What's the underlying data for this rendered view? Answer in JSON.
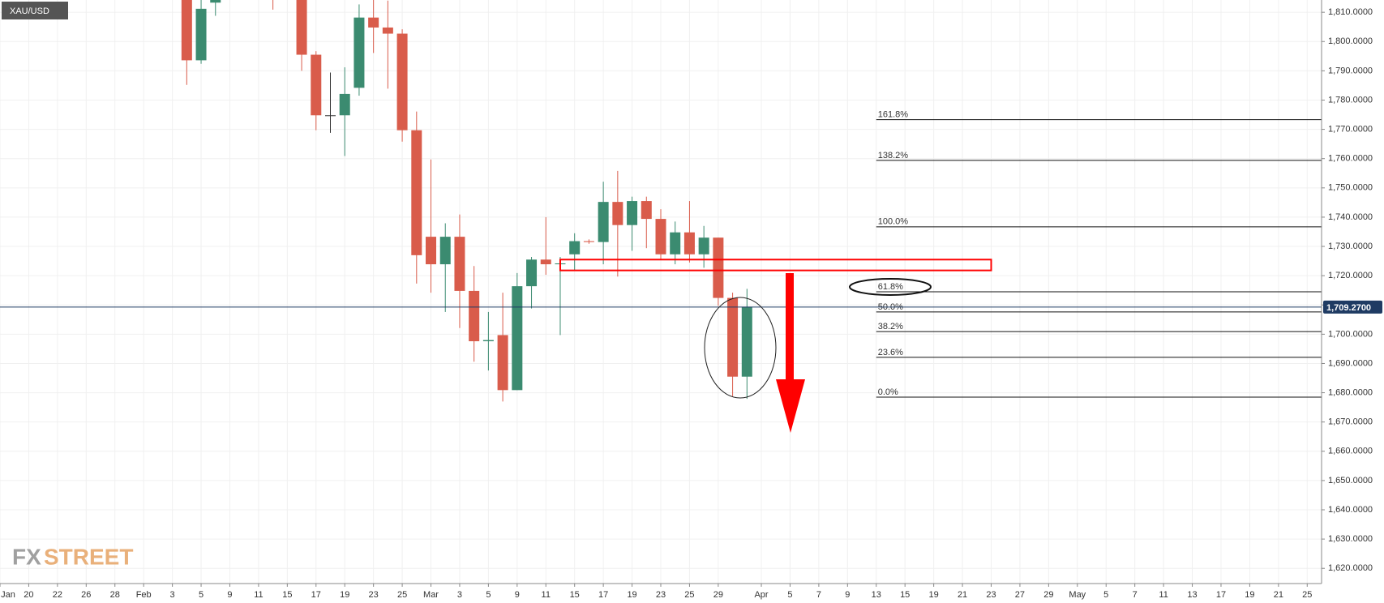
{
  "chart_data": {
    "type": "candlestick",
    "symbol": "XAU/USD",
    "logo": {
      "prefix": "FX",
      "suffix": "STREET"
    },
    "up_color": "#3b8b70",
    "down_color": "#d95c4b",
    "flat_color": "#333333",
    "grid": true,
    "x": [
      13,
      14,
      15,
      19,
      21,
      22,
      23,
      24,
      25,
      26,
      27,
      28,
      29,
      30,
      31,
      32,
      33,
      34,
      35,
      36,
      37,
      38,
      39,
      40,
      41,
      42,
      43,
      44,
      45,
      46,
      47,
      48,
      49,
      50,
      51,
      52
    ],
    "open": [
      1818,
      1793.6,
      1813.3,
      1822,
      1818,
      1795.5,
      1774.8,
      1774.8,
      1784.2,
      1808.2,
      1804.8,
      1802.7,
      1769.7,
      1733.3,
      1723.9,
      1733.3,
      1714.8,
      1697.6,
      1699.7,
      1680.9,
      1716.4,
      1725.5,
      1723.9,
      1727.3,
      1731.8,
      1731.5,
      1745.2,
      1737.3,
      1745.5,
      1739.4,
      1727.3,
      1734.8,
      1727.3,
      1733,
      1712.4,
      1685.5
    ],
    "high": [
      1825,
      1815,
      1818,
      1828,
      1822,
      1796.7,
      1789.4,
      1791.2,
      1812.7,
      1814.2,
      1814,
      1804.2,
      1776.1,
      1759.7,
      1737.9,
      1740.9,
      1723.3,
      1707.6,
      1714.2,
      1720.9,
      1726.4,
      1740,
      1726.4,
      1734.5,
      1732.4,
      1752.1,
      1755.8,
      1747,
      1747,
      1742.7,
      1738.5,
      1745.5,
      1737,
      1733,
      1714.2,
      1715.5
    ],
    "low": [
      1785.2,
      1792.4,
      1808.8,
      1810.9,
      1790,
      1769.7,
      1768.8,
      1760.9,
      1781.5,
      1796.1,
      1783.9,
      1765.8,
      1717.3,
      1714.2,
      1707.6,
      1702.1,
      1690.6,
      1687.6,
      1677,
      1680.9,
      1708.8,
      1720.3,
      1699.7,
      1721.8,
      1730.9,
      1723.9,
      1719.7,
      1728.5,
      1729.4,
      1725.5,
      1723.9,
      1724.5,
      1722.7,
      1709.7,
      1678.8,
      1677.9
    ],
    "close": [
      1793.6,
      1811.2,
      1816,
      1818,
      1795.5,
      1774.8,
      1774.8,
      1782.1,
      1808.2,
      1804.8,
      1802.7,
      1769.7,
      1727,
      1723.9,
      1733.3,
      1714.8,
      1697.6,
      1698,
      1680.9,
      1716.4,
      1725.5,
      1723.9,
      1724.2,
      1731.8,
      1731.5,
      1745.2,
      1737.3,
      1745.5,
      1739.4,
      1727.3,
      1734.8,
      1727.3,
      1733,
      1712.4,
      1685.5,
      1709.4
    ],
    "xlim": [
      0,
      92
    ],
    "ylim": [
      1614.8,
      1814.2
    ],
    "xticks": [
      {
        "value": 0,
        "label": "Jan"
      },
      {
        "value": 2,
        "label": "20"
      },
      {
        "value": 4,
        "label": "22"
      },
      {
        "value": 6,
        "label": "26"
      },
      {
        "value": 8,
        "label": "28"
      },
      {
        "value": 10,
        "label": "Feb"
      },
      {
        "value": 12,
        "label": "3"
      },
      {
        "value": 14,
        "label": "5"
      },
      {
        "value": 16,
        "label": "9"
      },
      {
        "value": 18,
        "label": "11"
      },
      {
        "value": 20,
        "label": "15"
      },
      {
        "value": 22,
        "label": "17"
      },
      {
        "value": 24,
        "label": "19"
      },
      {
        "value": 26,
        "label": "23"
      },
      {
        "value": 28,
        "label": "25"
      },
      {
        "value": 30,
        "label": "Mar"
      },
      {
        "value": 32,
        "label": "3"
      },
      {
        "value": 34,
        "label": "5"
      },
      {
        "value": 36,
        "label": "9"
      },
      {
        "value": 38,
        "label": "11"
      },
      {
        "value": 40,
        "label": "15"
      },
      {
        "value": 42,
        "label": "17"
      },
      {
        "value": 44,
        "label": "19"
      },
      {
        "value": 46,
        "label": "23"
      },
      {
        "value": 48,
        "label": "25"
      },
      {
        "value": 50,
        "label": "29"
      },
      {
        "value": 53,
        "label": "Apr"
      },
      {
        "value": 55,
        "label": "5"
      },
      {
        "value": 57,
        "label": "7"
      },
      {
        "value": 59,
        "label": "9"
      },
      {
        "value": 61,
        "label": "13"
      },
      {
        "value": 63,
        "label": "15"
      },
      {
        "value": 65,
        "label": "19"
      },
      {
        "value": 67,
        "label": "21"
      },
      {
        "value": 69,
        "label": "23"
      },
      {
        "value": 71,
        "label": "27"
      },
      {
        "value": 73,
        "label": "29"
      },
      {
        "value": 75,
        "label": "May"
      },
      {
        "value": 77,
        "label": "5"
      },
      {
        "value": 79,
        "label": "7"
      },
      {
        "value": 81,
        "label": "11"
      },
      {
        "value": 83,
        "label": "13"
      },
      {
        "value": 85,
        "label": "17"
      },
      {
        "value": 87,
        "label": "19"
      },
      {
        "value": 89,
        "label": "21"
      },
      {
        "value": 91,
        "label": "25"
      }
    ],
    "yticks": [
      {
        "value": 1620,
        "label": "1,620.0000"
      },
      {
        "value": 1630,
        "label": "1,630.0000"
      },
      {
        "value": 1640,
        "label": "1,640.0000"
      },
      {
        "value": 1650,
        "label": "1,650.0000"
      },
      {
        "value": 1660,
        "label": "1,660.0000"
      },
      {
        "value": 1670,
        "label": "1,670.0000"
      },
      {
        "value": 1680,
        "label": "1,680.0000"
      },
      {
        "value": 1690,
        "label": "1,690.0000"
      },
      {
        "value": 1700,
        "label": "1,700.0000"
      },
      {
        "value": 1710,
        "label": "1,710.0000"
      },
      {
        "value": 1720,
        "label": "1,720.0000"
      },
      {
        "value": 1730,
        "label": "1,730.0000"
      },
      {
        "value": 1740,
        "label": "1,740.0000"
      },
      {
        "value": 1750,
        "label": "1,750.0000"
      },
      {
        "value": 1760,
        "label": "1,760.0000"
      },
      {
        "value": 1770,
        "label": "1,770.0000"
      },
      {
        "value": 1780,
        "label": "1,780.0000"
      },
      {
        "value": 1790,
        "label": "1,790.0000"
      },
      {
        "value": 1800,
        "label": "1,800.0000"
      },
      {
        "value": 1810,
        "label": "1,810.0000"
      }
    ],
    "last_price": {
      "value": 1709.27,
      "label": "1,709.2700",
      "color": "#1f3b63"
    },
    "zone": {
      "x": [
        39,
        69
      ],
      "y": [
        1721.8,
        1725.5
      ],
      "color": "#ff0000"
    },
    "fibonacci": {
      "x_start": 61,
      "levels": [
        {
          "label": "161.8%",
          "value": 1773.3
        },
        {
          "label": "138.2%",
          "value": 1759.4
        },
        {
          "label": "100.0%",
          "value": 1736.7
        },
        {
          "label": "61.8%",
          "value": 1714.5
        },
        {
          "label": "50.0%",
          "value": 1707.6
        },
        {
          "label": "38.2%",
          "value": 1700.9
        },
        {
          "label": "23.6%",
          "value": 1692.1
        },
        {
          "label": "0.0%",
          "value": 1678.5
        }
      ]
    }
  }
}
